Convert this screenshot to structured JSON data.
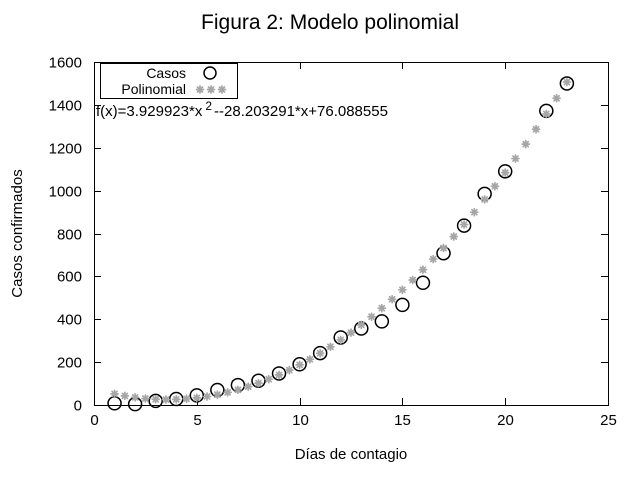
{
  "window": {
    "background": "#ffffff"
  },
  "chart_data": {
    "type": "scatter",
    "title": "Figura 2: Modelo polinomial",
    "xlabel": "Días de contagio",
    "ylabel": "Casos confirmados",
    "xlim": [
      0,
      25
    ],
    "ylim": [
      0,
      1600
    ],
    "xticks": [
      0,
      5,
      10,
      15,
      20,
      25
    ],
    "yticks": [
      0,
      200,
      400,
      600,
      800,
      1000,
      1200,
      1400,
      1600
    ],
    "grid": false,
    "legend_position": "top-left-inside",
    "series": [
      {
        "name": "Casos",
        "marker": "open-circle",
        "color": "#000000",
        "points": [
          [
            1,
            8
          ],
          [
            2,
            4
          ],
          [
            3,
            19
          ],
          [
            4,
            28
          ],
          [
            5,
            45
          ],
          [
            6,
            70
          ],
          [
            7,
            93
          ],
          [
            8,
            113
          ],
          [
            9,
            147
          ],
          [
            10,
            190
          ],
          [
            11,
            242
          ],
          [
            12,
            315
          ],
          [
            13,
            357
          ],
          [
            14,
            390
          ],
          [
            15,
            467
          ],
          [
            16,
            570
          ],
          [
            17,
            708
          ],
          [
            18,
            837
          ],
          [
            19,
            985
          ],
          [
            20,
            1090
          ],
          [
            22,
            1372
          ],
          [
            23,
            1500
          ]
        ]
      },
      {
        "name": "Polinomial",
        "marker": "asterisk",
        "color": "#a6a6a6",
        "fit": {
          "a": 3.929923,
          "b": -28.203291,
          "c": 76.088555,
          "x_start": 1,
          "x_end": 23,
          "x_step": 0.5
        }
      }
    ],
    "equation": {
      "prefix": "f(x)=3.929923*x",
      "superscript": "2",
      "suffix": "--28.203291*x+76.088555"
    }
  },
  "colors": {
    "axis": "#000000",
    "fit_marker": "#a6a6a6",
    "data_marker": "#000000"
  }
}
